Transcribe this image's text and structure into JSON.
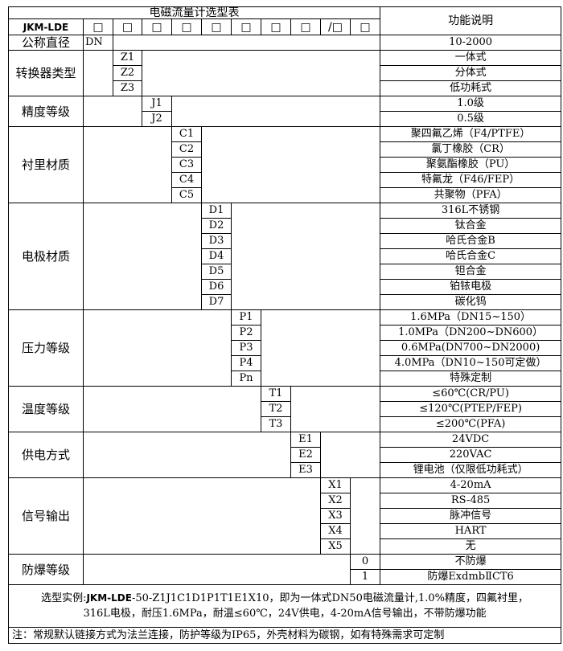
{
  "title": "电磁流量计选型表",
  "function_header": "功能说明",
  "model_prefix": "JKM-LDE",
  "code_slots": [
    "□",
    "□",
    "□",
    "□",
    "□",
    "□",
    "□",
    "□",
    "/□",
    "□"
  ],
  "groups": [
    {
      "label": "公称直径",
      "options": [
        {
          "code": "DN",
          "desc": "10-2000"
        }
      ]
    },
    {
      "label": "转换器类型",
      "options": [
        {
          "code": "Z1",
          "desc": "一体式"
        },
        {
          "code": "Z2",
          "desc": "分体式"
        },
        {
          "code": "Z3",
          "desc": "低功耗式"
        }
      ]
    },
    {
      "label": "精度等级",
      "options": [
        {
          "code": "J1",
          "desc": "1.0级"
        },
        {
          "code": "J2",
          "desc": "0.5级"
        }
      ]
    },
    {
      "label": "衬里材质",
      "options": [
        {
          "code": "C1",
          "desc": "聚四氟乙烯（F4/PTFE）"
        },
        {
          "code": "C2",
          "desc": "氯丁橡胶（CR）"
        },
        {
          "code": "C3",
          "desc": "聚氨酯橡胶（PU）"
        },
        {
          "code": "C4",
          "desc": "特氟龙（F46/FEP）"
        },
        {
          "code": "C5",
          "desc": "共聚物（PFA）"
        }
      ]
    },
    {
      "label": "电极材质",
      "options": [
        {
          "code": "D1",
          "desc": "316L不锈钢"
        },
        {
          "code": "D2",
          "desc": "钛合金"
        },
        {
          "code": "D3",
          "desc": "哈氏合金B"
        },
        {
          "code": "D4",
          "desc": "哈氏合金C"
        },
        {
          "code": "D5",
          "desc": "钽合金"
        },
        {
          "code": "D6",
          "desc": "铂铱电极"
        },
        {
          "code": "D7",
          "desc": "碳化钨"
        }
      ]
    },
    {
      "label": "压力等级",
      "options": [
        {
          "code": "P1",
          "desc": "1.6MPa（DN15~150）"
        },
        {
          "code": "P2",
          "desc": "1.0MPa（DN200~DN600）"
        },
        {
          "code": "P3",
          "desc": "0.6MPa(DN700~DN2000)"
        },
        {
          "code": "P4",
          "desc": "4.0MPa（DN10~150可定做）"
        },
        {
          "code": "Pn",
          "desc": "特殊定制"
        }
      ]
    },
    {
      "label": "温度等级",
      "options": [
        {
          "code": "T1",
          "desc": "≤60℃(CR/PU)"
        },
        {
          "code": "T2",
          "desc": "≤120℃(PTEP/FEP)"
        },
        {
          "code": "T3",
          "desc": "≤200℃(PFA)"
        }
      ]
    },
    {
      "label": "供电方式",
      "options": [
        {
          "code": "E1",
          "desc": "24VDC"
        },
        {
          "code": "E2",
          "desc": "220VAC"
        },
        {
          "code": "E3",
          "desc": "锂电池（仅限低功耗式）"
        }
      ]
    },
    {
      "label": "信号输出",
      "options": [
        {
          "code": "X1",
          "desc": "4-20mA"
        },
        {
          "code": "X2",
          "desc": "RS-485"
        },
        {
          "code": "X3",
          "desc": "脉冲信号"
        },
        {
          "code": "X4",
          "desc": "HART"
        },
        {
          "code": "X5",
          "desc": "无"
        }
      ]
    },
    {
      "label": "防爆等级",
      "options": [
        {
          "code": "0",
          "desc": "不防爆"
        },
        {
          "code": "1",
          "desc": "防爆ExdmbⅡCT6"
        }
      ]
    }
  ],
  "example": {
    "label": "选型实例:",
    "model": "JKM-LDE",
    "rest": "-50-Z1J1C1D1P1T1E1X10，即为一体式DN50电磁流量计,1.0%精度，四氟衬里，",
    "line2": "316L电极，耐压1.6MPa，耐温≤60℃，24V供电，4-20mA信号输出，不带防爆功能"
  },
  "note": "注：常规默认链接方式为法兰连接，防护等级为IP65，外壳材料为碳钢，如有特殊需求可定制"
}
